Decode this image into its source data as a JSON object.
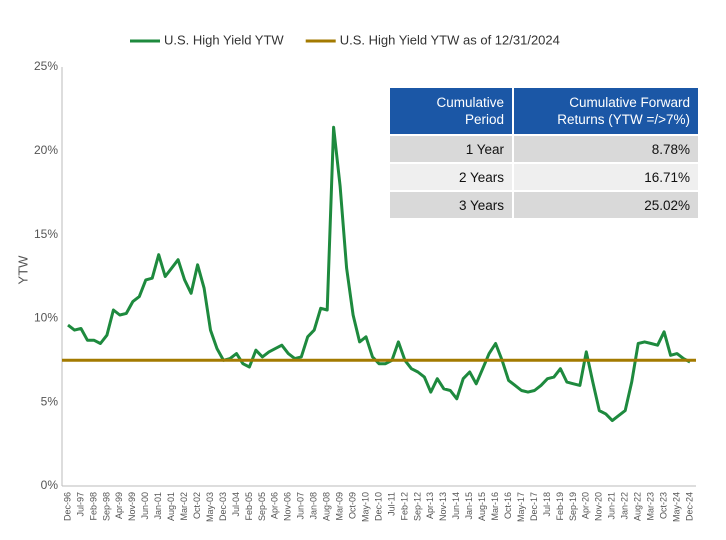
{
  "chart_data": {
    "type": "line",
    "y_label": "YTW",
    "categories": [
      "Dec-96",
      null,
      "Jul-97",
      null,
      "Feb-98",
      null,
      "Sep-98",
      null,
      "Apr-99",
      null,
      "Nov-99",
      null,
      "Jun-00",
      null,
      "Jan-01",
      null,
      "Aug-01",
      null,
      "Mar-02",
      null,
      "Oct-02",
      null,
      "May-03",
      null,
      "Dec-03",
      null,
      "Jul-04",
      null,
      "Feb-05",
      null,
      "Sep-05",
      null,
      "Apr-06",
      null,
      "Nov-06",
      null,
      "Jun-07",
      null,
      "Jan-08",
      null,
      "Aug-08",
      null,
      "Mar-09",
      null,
      "Oct-09",
      null,
      "May-10",
      null,
      "Dec-10",
      null,
      "Jul-11",
      null,
      "Feb-12",
      null,
      "Sep-12",
      null,
      "Apr-13",
      null,
      "Nov-13",
      null,
      "Jun-14",
      null,
      "Jan-15",
      null,
      "Aug-15",
      null,
      "Mar-16",
      null,
      "Oct-16",
      null,
      "May-17",
      null,
      "Dec-17",
      null,
      "Jul-18",
      null,
      "Feb-19",
      null,
      "Sep-19",
      null,
      "Apr-20",
      null,
      "Nov-20",
      null,
      "Jun-21",
      null,
      "Jan-22",
      null,
      "Aug-22",
      null,
      "Mar-23",
      null,
      "Oct-23",
      null,
      "May-24",
      null,
      "Dec-24"
    ],
    "series": [
      {
        "name": "U.S. High Yield YTW",
        "color": "#1e8a3e",
        "values": [
          9.6,
          9.3,
          9.4,
          8.7,
          8.7,
          8.5,
          9.0,
          10.5,
          10.2,
          10.3,
          11.0,
          11.3,
          12.3,
          12.4,
          13.8,
          12.5,
          13.0,
          13.5,
          12.3,
          11.5,
          13.2,
          11.8,
          9.3,
          8.2,
          7.5,
          7.6,
          7.9,
          7.3,
          7.1,
          8.1,
          7.7,
          8.0,
          8.2,
          8.4,
          7.9,
          7.6,
          7.7,
          8.9,
          9.3,
          10.6,
          10.5,
          21.4,
          17.9,
          13.0,
          10.2,
          8.6,
          8.9,
          7.7,
          7.3,
          7.3,
          7.5,
          8.6,
          7.5,
          7.0,
          6.8,
          6.5,
          5.6,
          6.4,
          5.8,
          5.7,
          5.2,
          6.4,
          6.8,
          6.1,
          7.0,
          7.9,
          8.5,
          7.5,
          6.3,
          6.0,
          5.7,
          5.6,
          5.7,
          6.0,
          6.4,
          6.5,
          7.0,
          6.2,
          6.1,
          6.0,
          8.0,
          6.2,
          4.5,
          4.3,
          3.9,
          4.2,
          4.5,
          6.2,
          8.5,
          8.6,
          8.5,
          8.4,
          9.2,
          7.8,
          7.9,
          7.6,
          7.4
        ]
      }
    ],
    "reference": {
      "name": "U.S. High Yield YTW as of 12/31/2024",
      "color": "#a37a00",
      "value": 7.5
    },
    "ylim": [
      0,
      25
    ],
    "yticks": [
      {
        "value": 0,
        "label": "0%"
      },
      {
        "value": 5,
        "label": "5%"
      },
      {
        "value": 10,
        "label": "10%"
      },
      {
        "value": 15,
        "label": "15%"
      },
      {
        "value": 20,
        "label": "20%"
      },
      {
        "value": 25,
        "label": "25%"
      }
    ],
    "grid": false,
    "legend": "top",
    "table": {
      "header": [
        "Cumulative Period",
        "Cumulative Forward Returns (YTW =/>7%)"
      ],
      "rows": [
        [
          "1 Year",
          "8.78%"
        ],
        [
          "2 Years",
          "16.71%"
        ],
        [
          "3 Years",
          "25.02%"
        ]
      ]
    }
  }
}
